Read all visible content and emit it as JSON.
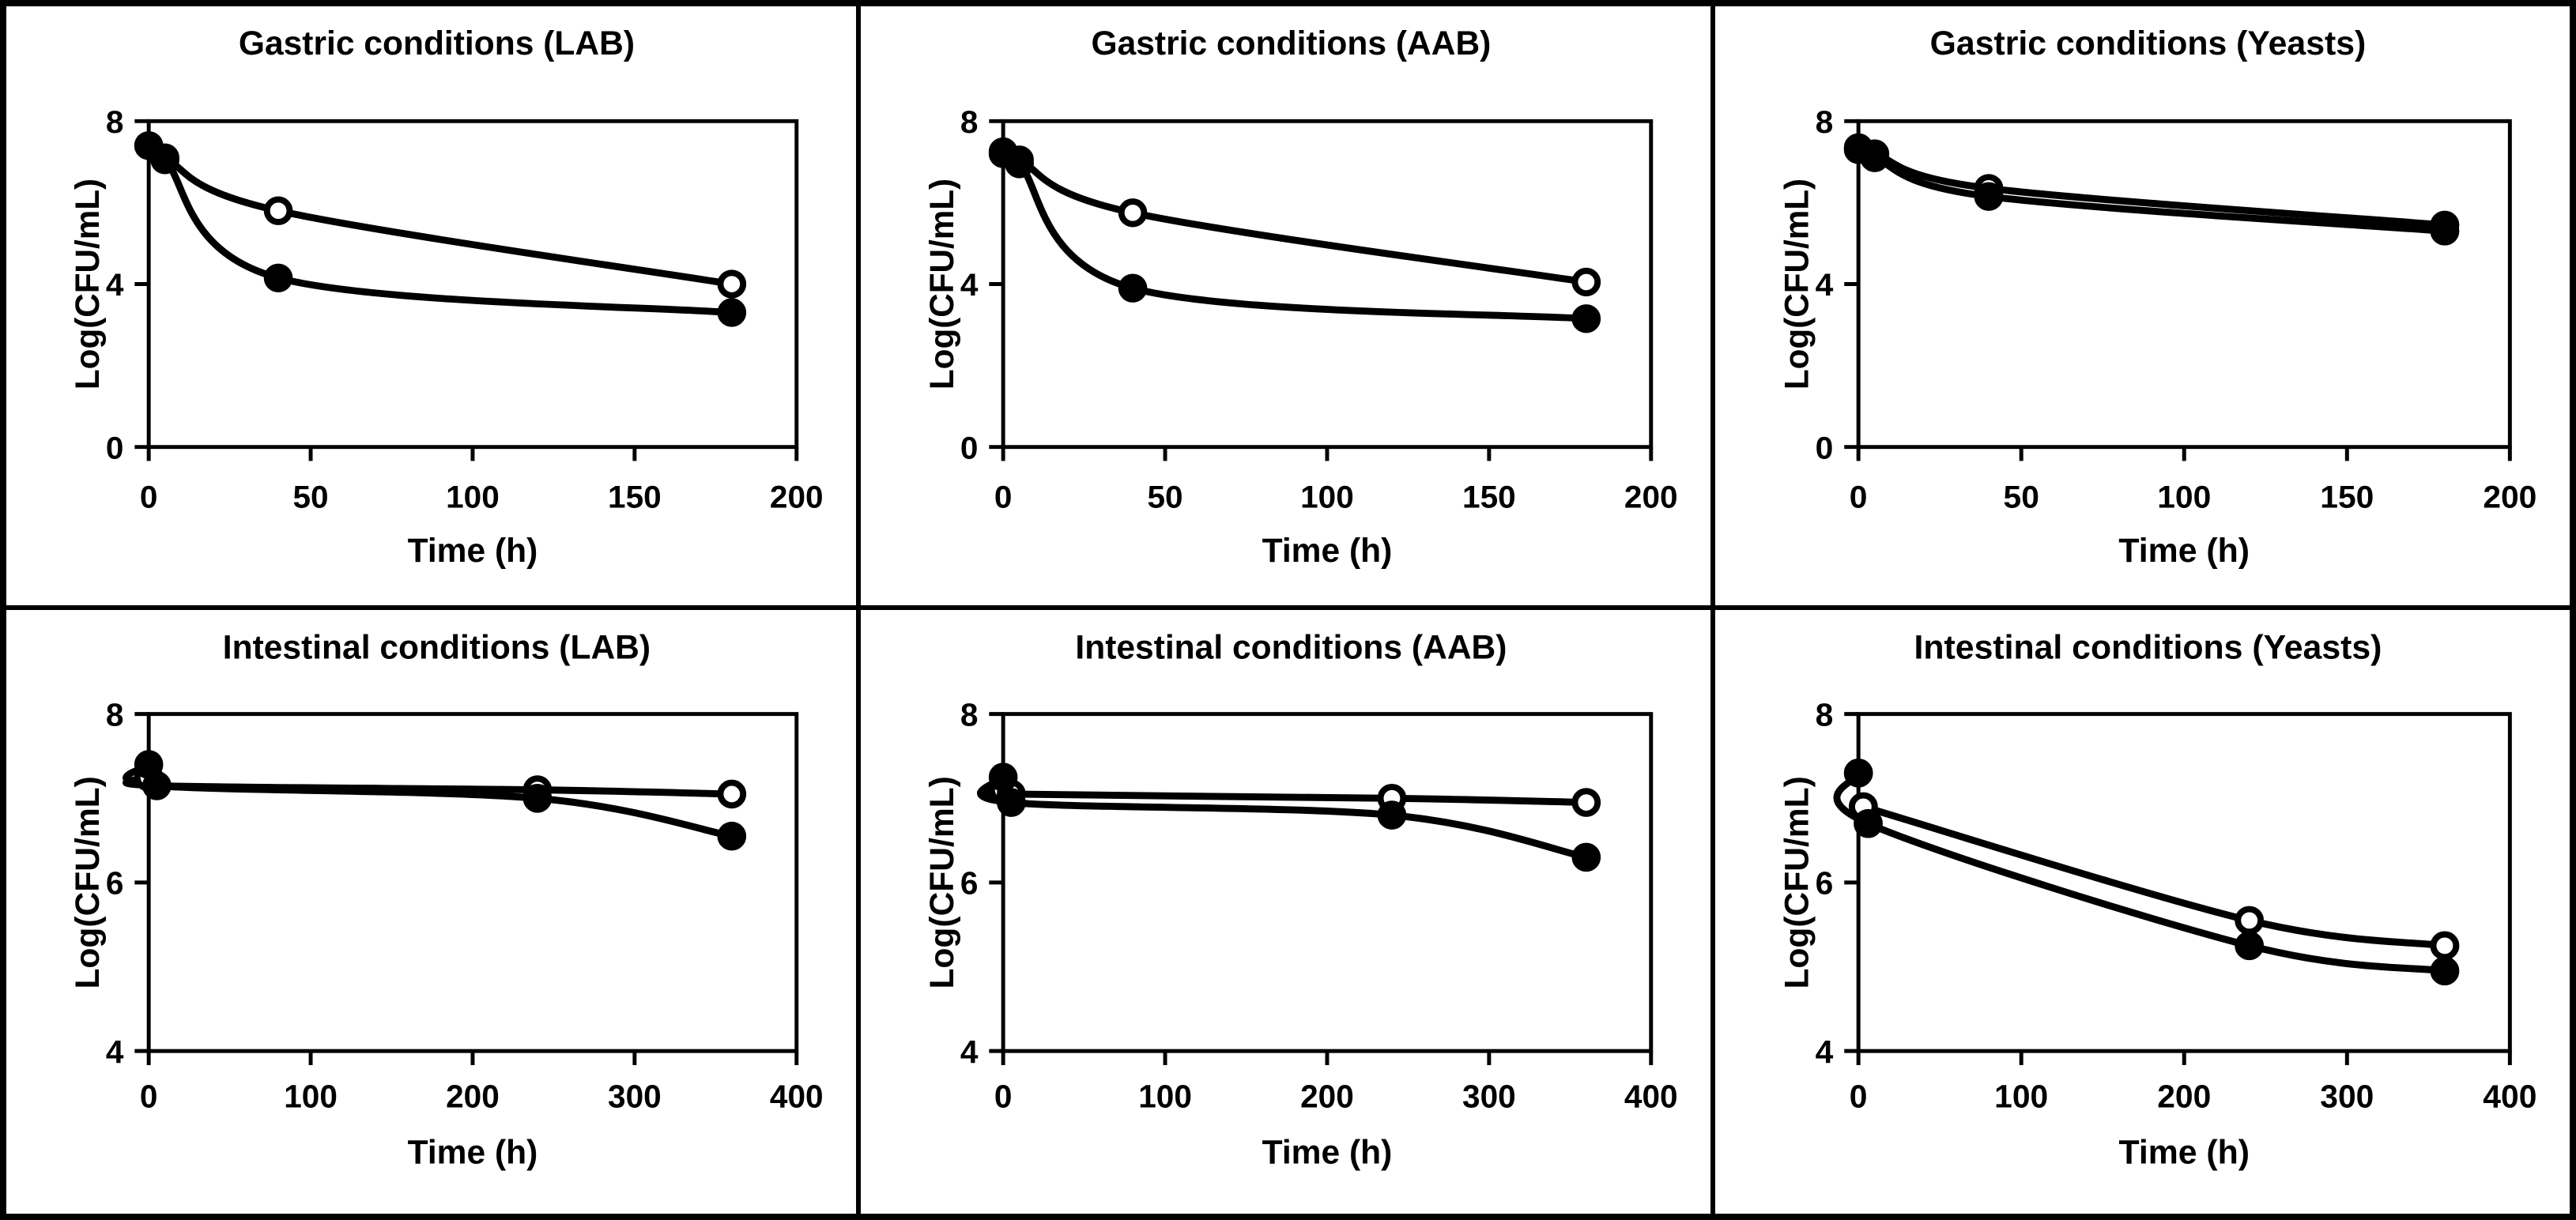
{
  "figure": {
    "background_color": "#ffffff",
    "foreground_color": "#000000",
    "layout": "2 rows x 3 columns of line charts",
    "legend": "none shown"
  },
  "chart_data": [
    {
      "type": "line",
      "title": "Gastric conditions (LAB)",
      "xlabel": "Time (h)",
      "ylabel": "Log(CFU/mL)",
      "xlim": [
        0,
        200
      ],
      "xticks": [
        0,
        50,
        100,
        150,
        200
      ],
      "ylim": [
        0,
        8
      ],
      "yticks": [
        8,
        4,
        0
      ],
      "grid": false,
      "series": [
        {
          "name": "open-circle-series",
          "marker": "open",
          "color": "#000000",
          "points": [
            [
              0,
              7.4
            ],
            [
              5,
              7.1
            ],
            [
              40,
              5.8
            ],
            [
              180,
              4.0
            ]
          ]
        },
        {
          "name": "filled-circle-series",
          "marker": "filled",
          "color": "#000000",
          "points": [
            [
              0,
              7.4
            ],
            [
              5,
              7.05
            ],
            [
              40,
              4.15
            ],
            [
              180,
              3.3
            ]
          ]
        }
      ]
    },
    {
      "type": "line",
      "title": "Gastric conditions (AAB)",
      "xlabel": "Time (h)",
      "ylabel": "Log(CFU/mL)",
      "xlim": [
        0,
        200
      ],
      "xticks": [
        0,
        50,
        100,
        150,
        200
      ],
      "ylim": [
        0,
        8
      ],
      "yticks": [
        8,
        4,
        0
      ],
      "grid": false,
      "series": [
        {
          "name": "open-circle-series",
          "marker": "open",
          "color": "#000000",
          "points": [
            [
              0,
              7.25
            ],
            [
              5,
              7.05
            ],
            [
              40,
              5.75
            ],
            [
              180,
              4.05
            ]
          ]
        },
        {
          "name": "filled-circle-series",
          "marker": "filled",
          "color": "#000000",
          "points": [
            [
              0,
              7.2
            ],
            [
              5,
              6.95
            ],
            [
              40,
              3.9
            ],
            [
              180,
              3.15
            ]
          ]
        }
      ]
    },
    {
      "type": "line",
      "title": "Gastric conditions (Yeasts)",
      "xlabel": "Time (h)",
      "ylabel": "Log(CFU/mL)",
      "xlim": [
        0,
        200
      ],
      "xticks": [
        0,
        50,
        100,
        150,
        200
      ],
      "ylim": [
        0,
        8
      ],
      "yticks": [
        8,
        4,
        0
      ],
      "grid": false,
      "series": [
        {
          "name": "open-circle-series",
          "marker": "open",
          "color": "#000000",
          "points": [
            [
              0,
              7.35
            ],
            [
              5,
              7.2
            ],
            [
              40,
              6.35
            ],
            [
              180,
              5.45
            ]
          ]
        },
        {
          "name": "filled-circle-series",
          "marker": "filled",
          "color": "#000000",
          "points": [
            [
              0,
              7.3
            ],
            [
              5,
              7.1
            ],
            [
              40,
              6.15
            ],
            [
              180,
              5.3
            ]
          ]
        }
      ]
    },
    {
      "type": "line",
      "title": "Intestinal conditions (LAB)",
      "xlabel": "Time (h)",
      "ylabel": "Log(CFU/mL)",
      "xlim": [
        0,
        400
      ],
      "xticks": [
        0,
        100,
        200,
        300,
        400
      ],
      "ylim": [
        4,
        8
      ],
      "yticks": [
        8,
        6,
        4
      ],
      "grid": false,
      "series": [
        {
          "name": "open-circle-series",
          "marker": "open",
          "color": "#000000",
          "points": [
            [
              0,
              7.25
            ],
            [
              5,
              7.15
            ],
            [
              240,
              7.1
            ],
            [
              360,
              7.05
            ]
          ]
        },
        {
          "name": "filled-circle-series",
          "marker": "filled",
          "color": "#000000",
          "points": [
            [
              0,
              7.4
            ],
            [
              5,
              7.15
            ],
            [
              240,
              7.0
            ],
            [
              360,
              6.55
            ]
          ]
        }
      ]
    },
    {
      "type": "line",
      "title": "Intestinal conditions (AAB)",
      "xlabel": "Time (h)",
      "ylabel": "Log(CFU/mL)",
      "xlim": [
        0,
        400
      ],
      "xticks": [
        0,
        100,
        200,
        300,
        400
      ],
      "ylim": [
        4,
        8
      ],
      "yticks": [
        8,
        6,
        4
      ],
      "grid": false,
      "series": [
        {
          "name": "open-circle-series",
          "marker": "open",
          "color": "#000000",
          "points": [
            [
              0,
              7.1
            ],
            [
              5,
              7.05
            ],
            [
              240,
              7.0
            ],
            [
              360,
              6.95
            ]
          ]
        },
        {
          "name": "filled-circle-series",
          "marker": "filled",
          "color": "#000000",
          "points": [
            [
              0,
              7.25
            ],
            [
              5,
              6.95
            ],
            [
              240,
              6.8
            ],
            [
              360,
              6.3
            ]
          ]
        }
      ]
    },
    {
      "type": "line",
      "title": "Intestinal conditions (Yeasts)",
      "xlabel": "Time (h)",
      "ylabel": "Log(CFU/mL)",
      "xlim": [
        0,
        400
      ],
      "xticks": [
        0,
        100,
        200,
        300,
        400
      ],
      "ylim": [
        4,
        8
      ],
      "yticks": [
        8,
        6,
        4
      ],
      "grid": false,
      "series": [
        {
          "name": "open-circle-series",
          "marker": "open",
          "color": "#000000",
          "points": [
            [
              3,
              6.9
            ],
            [
              240,
              5.55
            ],
            [
              360,
              5.25
            ]
          ]
        },
        {
          "name": "filled-circle-series",
          "marker": "filled",
          "color": "#000000",
          "points": [
            [
              0,
              7.3
            ],
            [
              6,
              6.7
            ],
            [
              240,
              5.25
            ],
            [
              360,
              4.95
            ]
          ]
        }
      ]
    }
  ]
}
